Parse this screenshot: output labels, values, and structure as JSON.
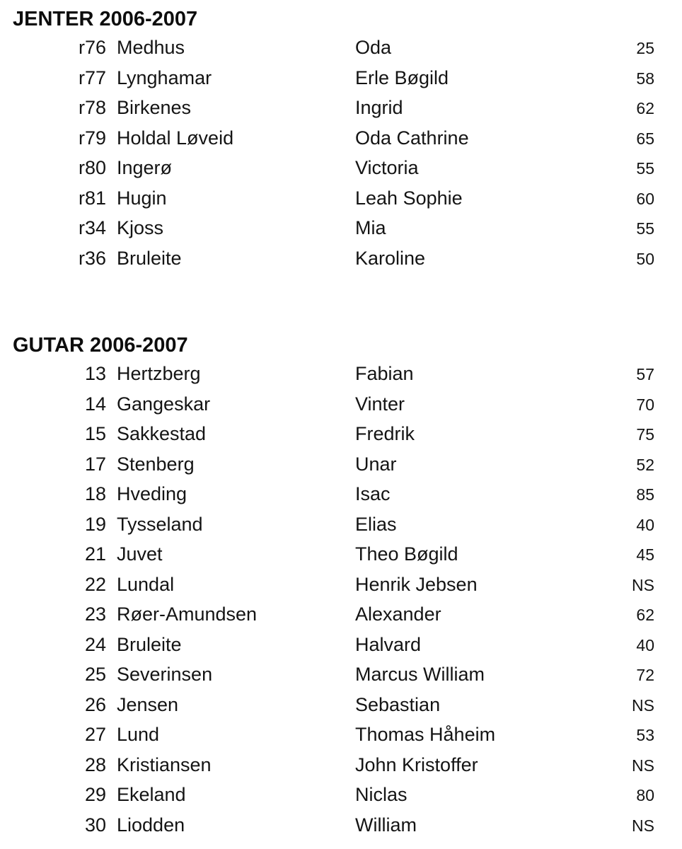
{
  "page": {
    "background": "#ffffff",
    "text_color": "#141414"
  },
  "sections": [
    {
      "title": "JENTER 2006-2007",
      "rows": [
        {
          "num": "r76",
          "last": "Medhus",
          "first": "Oda",
          "score": "25"
        },
        {
          "num": "r77",
          "last": "Lynghamar",
          "first": "Erle Bøgild",
          "score": "58"
        },
        {
          "num": "r78",
          "last": "Birkenes",
          "first": "Ingrid",
          "score": "62"
        },
        {
          "num": "r79",
          "last": "Holdal Løveid",
          "first": "Oda Cathrine",
          "score": "65"
        },
        {
          "num": "r80",
          "last": "Ingerø",
          "first": "Victoria",
          "score": "55"
        },
        {
          "num": "r81",
          "last": "Hugin",
          "first": "Leah Sophie",
          "score": "60"
        },
        {
          "num": "r34",
          "last": "Kjoss",
          "first": "Mia",
          "score": "55"
        },
        {
          "num": "r36",
          "last": "Bruleite",
          "first": "Karoline",
          "score": "50"
        }
      ]
    },
    {
      "title": "GUTAR 2006-2007",
      "rows": [
        {
          "num": "13",
          "last": "Hertzberg",
          "first": "Fabian",
          "score": "57"
        },
        {
          "num": "14",
          "last": "Gangeskar",
          "first": "Vinter",
          "score": "70"
        },
        {
          "num": "15",
          "last": "Sakkestad",
          "first": "Fredrik",
          "score": "75"
        },
        {
          "num": "17",
          "last": "Stenberg",
          "first": "Unar",
          "score": "52"
        },
        {
          "num": "18",
          "last": "Hveding",
          "first": "Isac",
          "score": "85"
        },
        {
          "num": "19",
          "last": "Tysseland",
          "first": "Elias",
          "score": "40"
        },
        {
          "num": "21",
          "last": "Juvet",
          "first": "Theo Bøgild",
          "score": "45"
        },
        {
          "num": "22",
          "last": "Lundal",
          "first": "Henrik Jebsen",
          "score": "NS"
        },
        {
          "num": "23",
          "last": "Røer-Amundsen",
          "first": "Alexander",
          "score": "62"
        },
        {
          "num": "24",
          "last": "Bruleite",
          "first": "Halvard",
          "score": "40"
        },
        {
          "num": "25",
          "last": "Severinsen",
          "first": "Marcus William",
          "score": "72"
        },
        {
          "num": "26",
          "last": "Jensen",
          "first": "Sebastian",
          "score": "NS"
        },
        {
          "num": "27",
          "last": "Lund",
          "first": "Thomas Håheim",
          "score": "53"
        },
        {
          "num": "28",
          "last": "Kristiansen",
          "first": "John Kristoffer",
          "score": "NS"
        },
        {
          "num": "29",
          "last": "Ekeland",
          "first": "Niclas",
          "score": "80"
        },
        {
          "num": "30",
          "last": "Liodden",
          "first": "William",
          "score": "NS"
        }
      ]
    }
  ]
}
